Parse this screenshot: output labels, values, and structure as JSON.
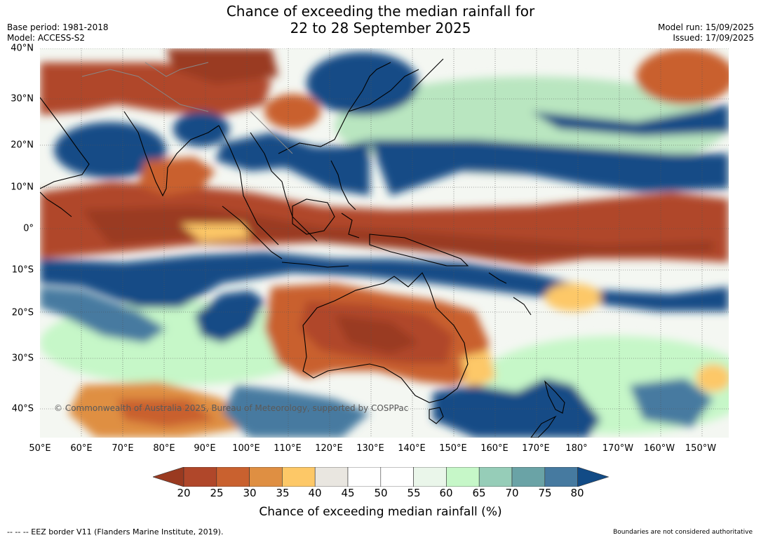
{
  "header": {
    "title_line1": "Chance of exceeding the median rainfall for",
    "title_line2": "22 to 28 September 2025",
    "base_period": "Base period: 1981-2018",
    "model": "Model: ACCESS-S2",
    "model_run": "Model run: 15/09/2025",
    "issued": "Issued: 17/09/2025"
  },
  "map": {
    "lat_labels": [
      "40°N",
      "30°N",
      "20°N",
      "10°N",
      "0°",
      "10°S",
      "20°S",
      "30°S",
      "40°S"
    ],
    "lon_labels": [
      "50°E",
      "60°E",
      "70°E",
      "80°E",
      "90°E",
      "100°E",
      "110°E",
      "120°E",
      "130°E",
      "140°E",
      "150°E",
      "160°E",
      "170°E",
      "180°",
      "170°W",
      "160°W",
      "150°W"
    ],
    "copyright": "© Commonwealth of Australia 2025, Bureau of Meteorology, supported by COSPPac"
  },
  "legend": {
    "ticks": [
      "20",
      "25",
      "30",
      "35",
      "40",
      "45",
      "50",
      "55",
      "60",
      "65",
      "70",
      "75",
      "80"
    ],
    "colors": [
      "#9a3a20",
      "#b0472a",
      "#c9612f",
      "#df8f42",
      "#fdc867",
      "#e9e6e0",
      "#ffffff",
      "#ffffff",
      "#eaf6ea",
      "#c6f7c8",
      "#96cdb8",
      "#6aa3a6",
      "#467aa0",
      "#124b86"
    ],
    "label": "Chance of exceeding median rainfall (%)"
  },
  "footer": {
    "eez": "-- -- -- EEZ border V11 (Flanders Marine Institute, 2019).",
    "boundaries": "Boundaries are not considered authoritative"
  }
}
